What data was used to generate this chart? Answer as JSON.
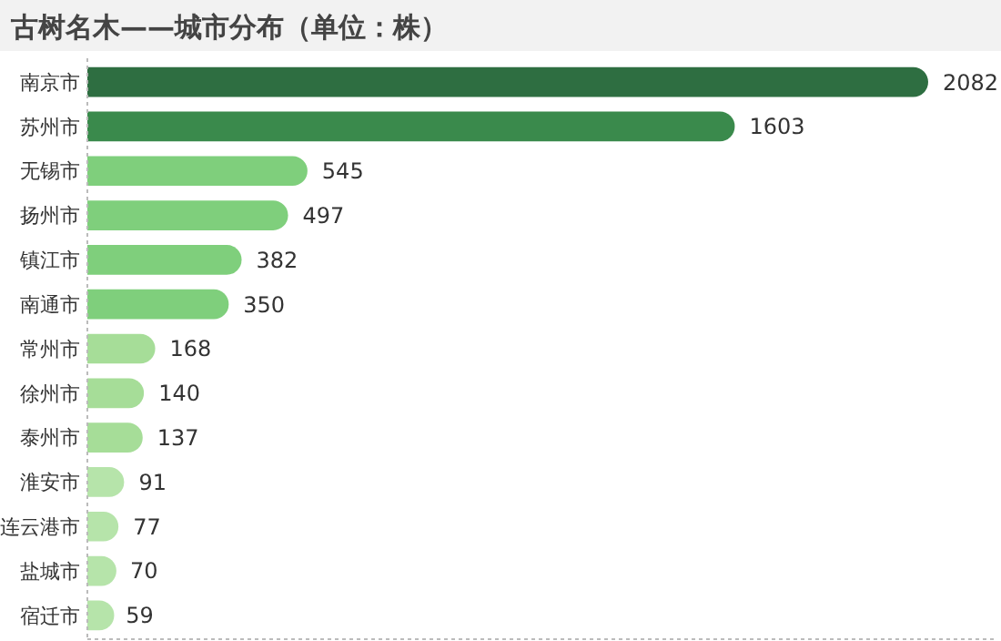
{
  "chart_data": {
    "type": "bar",
    "orientation": "horizontal",
    "title": "古树名木——城市分布（单位：株）",
    "categories": [
      "南京市",
      "苏州市",
      "无锡市",
      "扬州市",
      "镇江市",
      "南通市",
      "常州市",
      "徐州市",
      "泰州市",
      "淮安市",
      "连云港市",
      "盐城市",
      "宿迁市"
    ],
    "values": [
      2082,
      1603,
      545,
      497,
      382,
      350,
      168,
      140,
      137,
      91,
      77,
      70,
      59
    ],
    "colors": [
      "#2e6e41",
      "#3a8a4c",
      "#7fcf7c",
      "#7fcf7c",
      "#7fcf7c",
      "#7fcf7c",
      "#a6dd98",
      "#a6dd98",
      "#a6dd98",
      "#b6e4aa",
      "#b6e4aa",
      "#b6e4aa",
      "#b6e4aa"
    ],
    "data_labels": true
  }
}
